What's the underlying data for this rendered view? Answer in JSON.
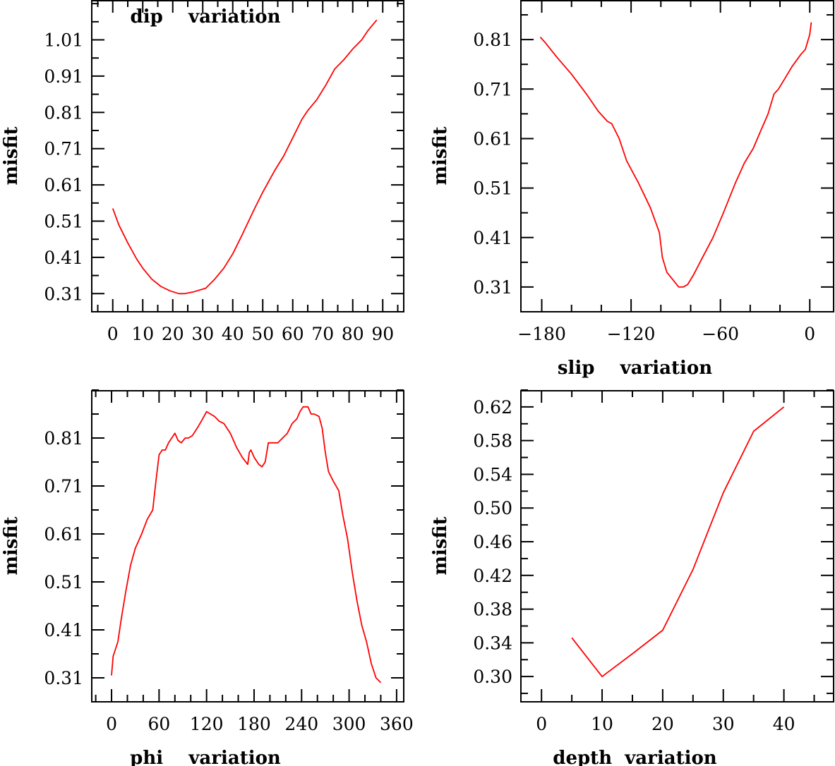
{
  "chart_data": [
    {
      "type": "line",
      "title": "",
      "xlabel": "dip    variation",
      "ylabel": "misfit",
      "xlim": [
        -7,
        97
      ],
      "ylim": [
        0.26,
        1.12
      ],
      "xticks": [
        0,
        10,
        20,
        30,
        40,
        50,
        60,
        70,
        80,
        90
      ],
      "xtick_labels": [
        "0",
        "10",
        "20",
        "30",
        "40",
        "50",
        "60",
        "70",
        "80",
        "90"
      ],
      "xminor": 5,
      "yticks": [
        0.31,
        0.41,
        0.51,
        0.61,
        0.71,
        0.81,
        0.91,
        1.01
      ],
      "ytick_labels": [
        "0.31",
        "0.41",
        "0.51",
        "0.61",
        "0.71",
        "0.81",
        "0.91",
        "1.01"
      ],
      "yminor": 0.05,
      "grid": false,
      "color": "#ff0000",
      "x": [
        0,
        2,
        5,
        8,
        10,
        13,
        16,
        19,
        22,
        24,
        27,
        31,
        34,
        37,
        40,
        43,
        47,
        50,
        54,
        57,
        60,
        63,
        65,
        68,
        71,
        74,
        77,
        80,
        83,
        85,
        88
      ],
      "y": [
        0.545,
        0.5,
        0.45,
        0.405,
        0.38,
        0.35,
        0.33,
        0.318,
        0.31,
        0.31,
        0.315,
        0.325,
        0.35,
        0.38,
        0.42,
        0.47,
        0.54,
        0.59,
        0.65,
        0.69,
        0.74,
        0.79,
        0.815,
        0.845,
        0.885,
        0.93,
        0.955,
        0.985,
        1.01,
        1.035,
        1.065
      ]
    },
    {
      "type": "line",
      "title": "",
      "xlabel": "slip    variation",
      "ylabel": "misfit",
      "xlim": [
        -194,
        16
      ],
      "ylim": [
        0.26,
        0.89
      ],
      "xticks": [
        -180,
        -120,
        -60,
        0
      ],
      "xtick_labels": [
        "−180",
        "−120",
        "−60",
        "0"
      ],
      "xminor": 20,
      "yticks": [
        0.31,
        0.41,
        0.51,
        0.61,
        0.71,
        0.81
      ],
      "ytick_labels": [
        "0.31",
        "0.41",
        "0.51",
        "0.61",
        "0.71",
        "0.81"
      ],
      "yminor": 0.05,
      "grid": false,
      "color": "#ff0000",
      "x": [
        -181,
        -178,
        -170,
        -160,
        -150,
        -142,
        -136,
        -133,
        -128,
        -123,
        -115,
        -107,
        -101,
        -99,
        -96,
        -92,
        -88,
        -85,
        -82,
        -78,
        -72,
        -65,
        -58,
        -50,
        -44,
        -38,
        -33,
        -28,
        -24,
        -21,
        -17,
        -12,
        -6,
        -3,
        0,
        1
      ],
      "y": [
        0.815,
        0.805,
        0.775,
        0.74,
        0.7,
        0.665,
        0.645,
        0.64,
        0.61,
        0.565,
        0.52,
        0.47,
        0.42,
        0.37,
        0.34,
        0.325,
        0.31,
        0.31,
        0.315,
        0.335,
        0.37,
        0.41,
        0.46,
        0.52,
        0.56,
        0.59,
        0.625,
        0.66,
        0.7,
        0.71,
        0.73,
        0.755,
        0.78,
        0.79,
        0.82,
        0.845
      ]
    },
    {
      "type": "line",
      "title": "",
      "xlabel": "phi    variation",
      "ylabel": "misfit",
      "xlim": [
        -25,
        369
      ],
      "ylim": [
        0.26,
        0.91
      ],
      "xticks": [
        0,
        60,
        120,
        180,
        240,
        300,
        360
      ],
      "xtick_labels": [
        "0",
        "60",
        "120",
        "180",
        "240",
        "300",
        "360"
      ],
      "xminor": 20,
      "yticks": [
        0.31,
        0.41,
        0.51,
        0.61,
        0.71,
        0.81
      ],
      "ytick_labels": [
        "0.31",
        "0.41",
        "0.51",
        "0.61",
        "0.71",
        "0.81"
      ],
      "yminor": 0.05,
      "grid": false,
      "color": "#ff0000",
      "x": [
        0,
        2,
        8,
        12,
        18,
        24,
        30,
        38,
        45,
        52,
        56,
        60,
        64,
        68,
        72,
        80,
        84,
        88,
        93,
        97,
        102,
        108,
        115,
        120,
        125,
        130,
        136,
        142,
        150,
        158,
        165,
        172,
        174,
        176,
        180,
        186,
        190,
        194,
        198,
        204,
        210,
        216,
        222,
        228,
        234,
        238,
        242,
        248,
        252,
        256,
        262,
        266,
        270,
        274,
        280,
        287,
        292,
        298,
        304,
        310,
        316,
        322,
        328,
        334,
        340
      ],
      "y": [
        0.315,
        0.355,
        0.385,
        0.43,
        0.49,
        0.545,
        0.58,
        0.61,
        0.64,
        0.66,
        0.72,
        0.775,
        0.785,
        0.785,
        0.8,
        0.82,
        0.805,
        0.8,
        0.81,
        0.81,
        0.815,
        0.83,
        0.85,
        0.865,
        0.86,
        0.855,
        0.845,
        0.84,
        0.82,
        0.79,
        0.77,
        0.755,
        0.78,
        0.785,
        0.77,
        0.755,
        0.75,
        0.76,
        0.8,
        0.8,
        0.8,
        0.81,
        0.82,
        0.84,
        0.85,
        0.865,
        0.875,
        0.875,
        0.86,
        0.86,
        0.855,
        0.83,
        0.78,
        0.74,
        0.72,
        0.7,
        0.65,
        0.6,
        0.53,
        0.47,
        0.42,
        0.385,
        0.34,
        0.31,
        0.3
      ]
    },
    {
      "type": "line",
      "title": "",
      "xlabel": "depth  variation",
      "ylabel": "misfit",
      "xlim": [
        -3.4,
        48.2
      ],
      "ylim": [
        0.27,
        0.64
      ],
      "xticks": [
        0,
        10,
        20,
        30,
        40
      ],
      "xtick_labels": [
        "0",
        "10",
        "20",
        "30",
        "40"
      ],
      "xminor": 5,
      "yticks": [
        0.3,
        0.34,
        0.38,
        0.42,
        0.46,
        0.5,
        0.54,
        0.58,
        0.62
      ],
      "ytick_labels": [
        "0.30",
        "0.34",
        "0.38",
        "0.42",
        "0.46",
        "0.50",
        "0.54",
        "0.58",
        "0.62"
      ],
      "yminor": 0.02,
      "grid": false,
      "color": "#ff0000",
      "x": [
        5,
        10,
        15,
        20,
        25,
        30,
        35,
        40
      ],
      "y": [
        0.346,
        0.3,
        0.327,
        0.355,
        0.427,
        0.518,
        0.591,
        0.62
      ]
    }
  ]
}
